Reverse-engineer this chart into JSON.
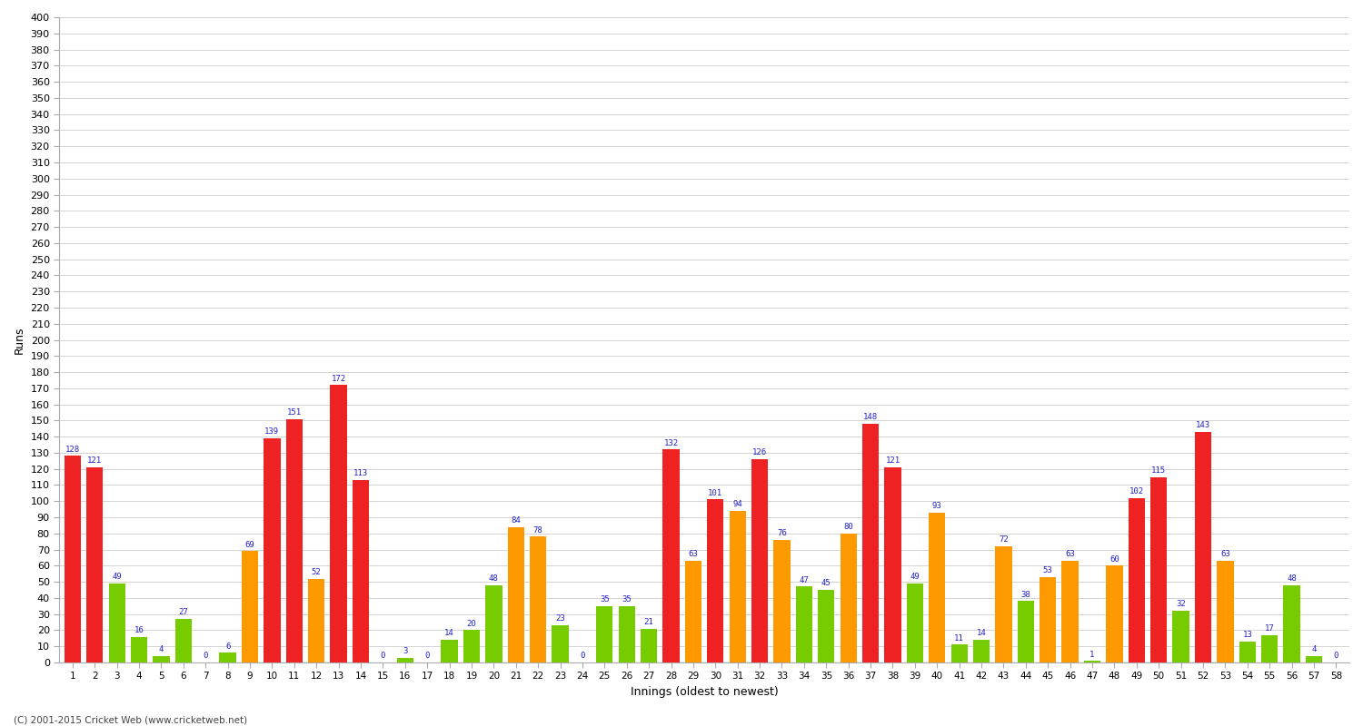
{
  "xlabel": "Innings (oldest to newest)",
  "ylabel": "Runs",
  "ylim": [
    0,
    400
  ],
  "yticks": [
    0,
    10,
    20,
    30,
    40,
    50,
    60,
    70,
    80,
    90,
    100,
    110,
    120,
    130,
    140,
    150,
    160,
    170,
    180,
    190,
    200,
    210,
    220,
    230,
    240,
    250,
    260,
    270,
    280,
    290,
    300,
    310,
    320,
    330,
    340,
    350,
    360,
    370,
    380,
    390,
    400
  ],
  "innings_data": [
    {
      "inn": 1,
      "val": 128,
      "color": "red"
    },
    {
      "inn": 2,
      "val": 121,
      "color": "red"
    },
    {
      "inn": 3,
      "val": 49,
      "color": "green"
    },
    {
      "inn": 4,
      "val": 16,
      "color": "green"
    },
    {
      "inn": 5,
      "val": 4,
      "color": "green"
    },
    {
      "inn": 6,
      "val": 27,
      "color": "green"
    },
    {
      "inn": 7,
      "val": 0,
      "color": "green"
    },
    {
      "inn": 8,
      "val": 6,
      "color": "green"
    },
    {
      "inn": 9,
      "val": 69,
      "color": "orange"
    },
    {
      "inn": 10,
      "val": 139,
      "color": "red"
    },
    {
      "inn": 11,
      "val": 151,
      "color": "red"
    },
    {
      "inn": 12,
      "val": 52,
      "color": "orange"
    },
    {
      "inn": 13,
      "val": 172,
      "color": "red"
    },
    {
      "inn": 14,
      "val": 113,
      "color": "red"
    },
    {
      "inn": 15,
      "val": 0,
      "color": "green"
    },
    {
      "inn": 16,
      "val": 3,
      "color": "green"
    },
    {
      "inn": 17,
      "val": 0,
      "color": "green"
    },
    {
      "inn": 18,
      "val": 14,
      "color": "green"
    },
    {
      "inn": 19,
      "val": 20,
      "color": "green"
    },
    {
      "inn": 20,
      "val": 48,
      "color": "green"
    },
    {
      "inn": 21,
      "val": 84,
      "color": "orange"
    },
    {
      "inn": 22,
      "val": 78,
      "color": "orange"
    },
    {
      "inn": 23,
      "val": 23,
      "color": "green"
    },
    {
      "inn": 24,
      "val": 0,
      "color": "green"
    },
    {
      "inn": 25,
      "val": 35,
      "color": "green"
    },
    {
      "inn": 26,
      "val": 35,
      "color": "green"
    },
    {
      "inn": 27,
      "val": 21,
      "color": "green"
    },
    {
      "inn": 28,
      "val": 132,
      "color": "red"
    },
    {
      "inn": 29,
      "val": 63,
      "color": "orange"
    },
    {
      "inn": 30,
      "val": 101,
      "color": "red"
    },
    {
      "inn": 31,
      "val": 94,
      "color": "orange"
    },
    {
      "inn": 32,
      "val": 126,
      "color": "red"
    },
    {
      "inn": 33,
      "val": 76,
      "color": "orange"
    },
    {
      "inn": 34,
      "val": 47,
      "color": "green"
    },
    {
      "inn": 35,
      "val": 45,
      "color": "green"
    },
    {
      "inn": 36,
      "val": 80,
      "color": "orange"
    },
    {
      "inn": 37,
      "val": 148,
      "color": "red"
    },
    {
      "inn": 38,
      "val": 121,
      "color": "red"
    },
    {
      "inn": 39,
      "val": 49,
      "color": "green"
    },
    {
      "inn": 40,
      "val": 93,
      "color": "orange"
    },
    {
      "inn": 41,
      "val": 11,
      "color": "green"
    },
    {
      "inn": 42,
      "val": 14,
      "color": "green"
    },
    {
      "inn": 43,
      "val": 72,
      "color": "orange"
    },
    {
      "inn": 44,
      "val": 38,
      "color": "green"
    },
    {
      "inn": 45,
      "val": 53,
      "color": "orange"
    },
    {
      "inn": 46,
      "val": 63,
      "color": "orange"
    },
    {
      "inn": 47,
      "val": 1,
      "color": "green"
    },
    {
      "inn": 48,
      "val": 60,
      "color": "orange"
    },
    {
      "inn": 49,
      "val": 102,
      "color": "red"
    },
    {
      "inn": 50,
      "val": 115,
      "color": "red"
    },
    {
      "inn": 51,
      "val": 32,
      "color": "green"
    },
    {
      "inn": 52,
      "val": 143,
      "color": "red"
    },
    {
      "inn": 53,
      "val": 63,
      "color": "orange"
    },
    {
      "inn": 54,
      "val": 13,
      "color": "green"
    },
    {
      "inn": 55,
      "val": 17,
      "color": "green"
    },
    {
      "inn": 56,
      "val": 48,
      "color": "green"
    },
    {
      "inn": 57,
      "val": 4,
      "color": "green"
    },
    {
      "inn": 58,
      "val": 0,
      "color": "green"
    }
  ],
  "colors": {
    "red": "#ee2222",
    "orange": "#ff9900",
    "green": "#77cc00",
    "background": "#ffffff",
    "grid": "#cccccc",
    "label_color": "#2222cc",
    "axis_text": "#000000",
    "footer": "#444444",
    "spine": "#aaaaaa"
  },
  "figsize": [
    15,
    8
  ],
  "dpi": 100,
  "footer": "(C) 2001-2015 Cricket Web (www.cricketweb.net)"
}
